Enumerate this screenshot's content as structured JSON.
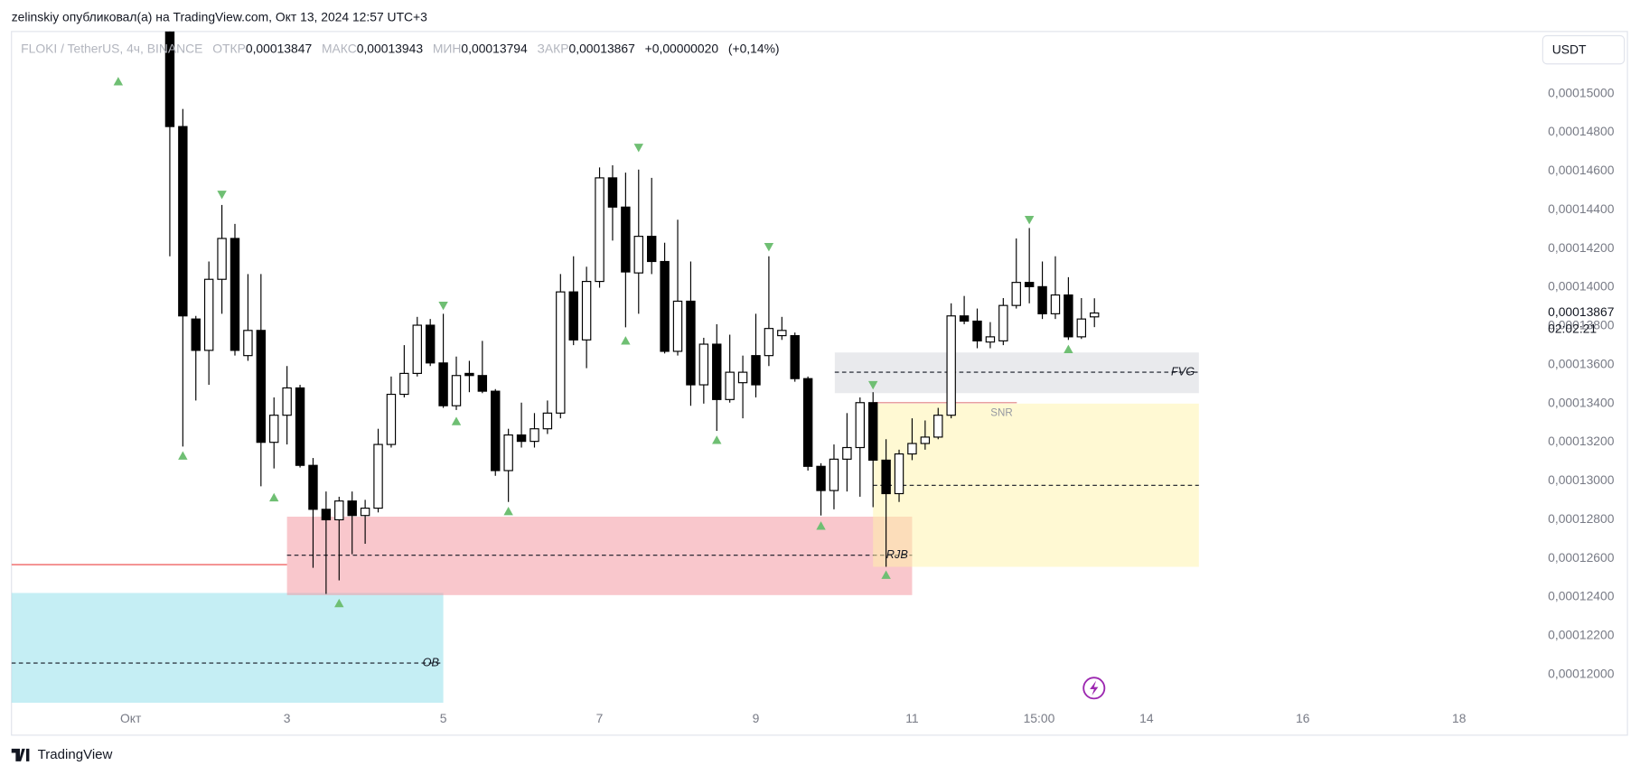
{
  "header": "zelinskiy опубликовал(а) на TradingView.com, Окт 13, 2024 12:57 UTC+3",
  "footer": "TradingView",
  "chart_data": {
    "type": "candlestick",
    "currency": "USDT",
    "legend": {
      "symbol": "FLOKI / TetherUS, 4ч, BINANCE",
      "fields": [
        {
          "name": "ОТКР",
          "value": 0.00013847,
          "label": "0,00013847"
        },
        {
          "name": "МАКС",
          "value": 0.00013943,
          "label": "0,00013943"
        },
        {
          "name": "МИН",
          "value": 0.00013794,
          "label": "0,00013794"
        },
        {
          "name": "ЗАКР",
          "value": 0.00013867,
          "label": "0,00013867"
        }
      ],
      "change": {
        "value": 2e-07,
        "label": "+0,00000020"
      },
      "change_pct": {
        "value": 0.14,
        "label": "(+0,14%)"
      }
    },
    "up_color": "#ffffff",
    "down_color": "#000000",
    "xlim": [
      -0.526,
      18.91
    ],
    "ylim": [
      0.00011854,
      0.00015321
    ],
    "grid": false,
    "xticks": [
      {
        "value": 1,
        "label": "Окт"
      },
      3,
      5,
      7,
      9,
      11,
      {
        "value": 12.625,
        "label": "15:00"
      },
      14,
      16,
      18
    ],
    "yticks": [
      {
        "value": 0.00012,
        "label": "0,00012000"
      },
      {
        "value": 0.000122,
        "label": "0,00012200"
      },
      {
        "value": 0.000124,
        "label": "0,00012400"
      },
      {
        "value": 0.000126,
        "label": "0,00012600"
      },
      {
        "value": 0.000128,
        "label": "0,00012800"
      },
      {
        "value": 0.00013,
        "label": "0,00013000"
      },
      {
        "value": 0.000132,
        "label": "0,00013200"
      },
      {
        "value": 0.000134,
        "label": "0,00013400"
      },
      {
        "value": 0.000136,
        "label": "0,00013600"
      },
      {
        "value": 0.000138,
        "label": "0,00013800"
      },
      {
        "value": 0.00014,
        "label": "0,00014000"
      },
      {
        "value": 0.000142,
        "label": "0,00014200"
      },
      {
        "value": 0.000144,
        "label": "0,00014400"
      },
      {
        "value": 0.000146,
        "label": "0,00014600"
      },
      {
        "value": 0.000148,
        "label": "0,00014800"
      },
      {
        "value": 0.00015,
        "label": "0,00015000"
      }
    ],
    "last_price": {
      "value": 0.00013867,
      "label": "0,00013867",
      "countdown": "02:02:21"
    },
    "x": [
      1.5,
      1.6667,
      1.8333,
      2,
      2.1667,
      2.3333,
      2.5,
      2.6667,
      2.8333,
      3,
      3.1667,
      3.3333,
      3.5,
      3.6667,
      3.8333,
      4,
      4.1667,
      4.3333,
      4.5,
      4.6667,
      4.8333,
      5,
      5.1667,
      5.3333,
      5.5,
      5.6667,
      5.8333,
      6,
      6.1667,
      6.3333,
      6.5,
      6.6667,
      6.8333,
      7,
      7.1667,
      7.3333,
      7.5,
      7.6667,
      7.8333,
      8,
      8.1667,
      8.3333,
      8.5,
      8.6667,
      8.8333,
      9,
      9.1667,
      9.3333,
      9.5,
      9.6667,
      9.8333,
      10,
      10.1667,
      10.3333,
      10.5,
      10.6667,
      10.8333,
      11,
      11.1667,
      11.3333,
      11.5,
      11.6667,
      11.8333,
      12,
      12.1667,
      12.3333,
      12.5,
      12.6667,
      12.8333,
      13,
      13.1667,
      13.3333
    ],
    "open": [
      0.00015332,
      0.0001483,
      0.00013836,
      0.00013674,
      0.00014041,
      0.00014252,
      0.00013647,
      0.00013777,
      0.00013199,
      0.00013339,
      0.0001348,
      0.0001308,
      0.00012853,
      0.00012799,
      0.00012896,
      0.00012821,
      0.00012859,
      0.00013188,
      0.00013447,
      0.00013555,
      0.00013804,
      0.00013609,
      0.00013388,
      0.00013555,
      0.00013544,
      0.00013463,
      0.00013053,
      0.00013237,
      0.00013204,
      0.00013269,
      0.0001335,
      0.00013976,
      0.00013728,
      0.0001403,
      0.00014565,
      0.00014414,
      0.00014074,
      0.00014263,
      0.00014133,
      0.00013669,
      0.00013928,
      0.00013496,
      0.00013706,
      0.0001342,
      0.00013507,
      0.00013647,
      0.00013647,
      0.0001375,
      0.0001375,
      0.00013528,
      0.00013075,
      0.0001295,
      0.00013112,
      0.00013172,
      0.00013404,
      0.00013107,
      0.00012934,
      0.00013139,
      0.00013193,
      0.00013226,
      0.00013339,
      0.00013852,
      0.00013825,
      0.00013717,
      0.00013723,
      0.00013906,
      0.00014025,
      0.00014003,
      0.00013863,
      0.0001396,
      0.00013744,
      0.00013847
    ],
    "high": [
      0.00015332,
      0.00014921,
      0.00013852,
      0.00014133,
      0.00014425,
      0.00014327,
      0.00014068,
      0.00014068,
      0.00013431,
      0.00013593,
      0.00013496,
      0.00013118,
      0.00012945,
      0.00012918,
      0.00012945,
      0.00012902,
      0.00013269,
      0.00013539,
      0.00013701,
      0.00013847,
      0.00013836,
      0.00013863,
      0.00013642,
      0.0001362,
      0.00013723,
      0.00013474,
      0.00013269,
      0.00013404,
      0.0001335,
      0.00013415,
      0.00014068,
      0.0001416,
      0.00014106,
      0.00014619,
      0.0001463,
      0.00014592,
      0.00014608,
      0.00014565,
      0.0001423,
      0.00014349,
      0.00014133,
      0.00013739,
      0.00013809,
      0.00013755,
      0.00013647,
      0.00013863,
      0.0001416,
      0.00013847,
      0.00013766,
      0.00013539,
      0.00013091,
      0.00013188,
      0.0001335,
      0.00013431,
      0.00013458,
      0.00013215,
      0.00013161,
      0.00013323,
      0.00013312,
      0.00013377,
      0.00013917,
      0.00013955,
      0.0001389,
      0.0001382,
      0.00013944,
      0.00014252,
      0.00014306,
      0.00014133,
      0.0001416,
      0.00014052,
      0.00013944,
      0.00013943
    ],
    "low": [
      0.0001416,
      0.00013177,
      0.00013415,
      0.00013496,
      0.00013863,
      0.00013647,
      0.0001362,
      0.00012972,
      0.00013064,
      0.00013188,
      0.00013069,
      0.00012551,
      0.00012416,
      0.00012486,
      0.00012621,
      0.00012675,
      0.00012837,
      0.00013172,
      0.00013431,
      0.00013539,
      0.00013593,
      0.00013377,
      0.00013366,
      0.00013458,
      0.00013453,
      0.00013026,
      0.00012891,
      0.00013172,
      0.00013172,
      0.00013242,
      0.00013323,
      0.00013701,
      0.00013582,
      0.00013998,
      0.00014241,
      0.00013793,
      0.00013863,
      0.00014068,
      0.00013658,
      0.00013647,
      0.00013388,
      0.00013399,
      0.00013258,
      0.00013404,
      0.00013323,
      0.00013431,
      0.00013593,
      0.00013728,
      0.00013512,
      0.00013053,
      0.00012821,
      0.00012853,
      0.00012945,
      0.00012918,
      0.00012864,
      0.00012556,
      0.00012891,
      0.00013107,
      0.00013161,
      0.00013215,
      0.00013323,
      0.00013809,
      0.00013685,
      0.00013685,
      0.00013701,
      0.0001389,
      0.00013917,
      0.00013836,
      0.00013836,
      0.00013728,
      0.00013733,
      0.00013794
    ],
    "close": [
      0.0001483,
      0.00013852,
      0.00013674,
      0.00014041,
      0.00014252,
      0.00013674,
      0.00013777,
      0.00013199,
      0.00013339,
      0.0001348,
      0.0001308,
      0.00012853,
      0.00012799,
      0.00012896,
      0.00012821,
      0.00012859,
      0.00013188,
      0.00013447,
      0.00013555,
      0.00013804,
      0.00013609,
      0.00013388,
      0.00013544,
      0.00013544,
      0.00013463,
      0.00013053,
      0.00013237,
      0.00013204,
      0.00013269,
      0.0001335,
      0.00013976,
      0.00013728,
      0.0001403,
      0.00014565,
      0.00014414,
      0.00014079,
      0.00014263,
      0.00014133,
      0.00013669,
      0.00013928,
      0.00013496,
      0.00013706,
      0.0001342,
      0.00013561,
      0.00013561,
      0.00013496,
      0.00013787,
      0.00013777,
      0.00013528,
      0.00013075,
      0.0001295,
      0.00013112,
      0.00013172,
      0.00013404,
      0.00013107,
      0.00012934,
      0.00013139,
      0.00013193,
      0.00013226,
      0.00013339,
      0.00013852,
      0.00013825,
      0.00013723,
      0.00013744,
      0.00013906,
      0.00014025,
      0.00014003,
      0.00013863,
      0.0001396,
      0.00013744,
      0.00013836,
      0.00013867
    ],
    "zones": [
      {
        "label": "OB",
        "x": [
          -0.526,
          5.0
        ],
        "y": [
          0.00011854,
          0.00012421
        ],
        "mid": 0.00012059,
        "color": "#8bdde9"
      },
      {
        "label": "RJB",
        "x": [
          3.0,
          11.0
        ],
        "y": [
          0.0001241,
          0.00012815
        ],
        "mid": 0.00012616,
        "color": "#f48f99"
      },
      {
        "x": [
          10.5,
          14.67
        ],
        "y": [
          0.00012556,
          0.00013399
        ],
        "mid": 0.00012977,
        "color": "#fff3a7"
      },
      {
        "label": "FVG",
        "x": [
          10.01,
          14.67
        ],
        "y": [
          0.00013453,
          0.00013663
        ],
        "mid": 0.00013561,
        "color": "#d3d5db"
      }
    ],
    "levels": [
      {
        "label": "SNR",
        "x": [
          10.5,
          12.34
        ],
        "y": 0.00013404,
        "color": "#e8a0a0"
      },
      {
        "x": [
          -0.526,
          3.0
        ],
        "y": 0.00012567,
        "color": "#f07070"
      }
    ],
    "pivot_color": "#6fbf73",
    "pivots": [
      {
        "x": 0.84,
        "y": 0.00015062,
        "dir": "up"
      },
      {
        "x": 1.6667,
        "y": 0.00013129,
        "dir": "up"
      },
      {
        "x": 2.1667,
        "y": 0.00014479,
        "dir": "down"
      },
      {
        "x": 2.8333,
        "y": 0.00012913,
        "dir": "up"
      },
      {
        "x": 3.6667,
        "y": 0.00012367,
        "dir": "up"
      },
      {
        "x": 5.0,
        "y": 0.00013906,
        "dir": "down"
      },
      {
        "x": 5.1667,
        "y": 0.00013307,
        "dir": "up"
      },
      {
        "x": 5.8333,
        "y": 0.00012842,
        "dir": "up"
      },
      {
        "x": 7.5,
        "y": 0.00014722,
        "dir": "down"
      },
      {
        "x": 7.3333,
        "y": 0.00013723,
        "dir": "up"
      },
      {
        "x": 8.5,
        "y": 0.0001321,
        "dir": "up"
      },
      {
        "x": 9.1667,
        "y": 0.00014209,
        "dir": "down"
      },
      {
        "x": 9.8333,
        "y": 0.00012767,
        "dir": "up"
      },
      {
        "x": 10.5,
        "y": 0.00013496,
        "dir": "down"
      },
      {
        "x": 10.6667,
        "y": 0.00012513,
        "dir": "up"
      },
      {
        "x": 12.5,
        "y": 0.00014349,
        "dir": "down"
      },
      {
        "x": 13.0,
        "y": 0.00013679,
        "dir": "up"
      }
    ]
  }
}
